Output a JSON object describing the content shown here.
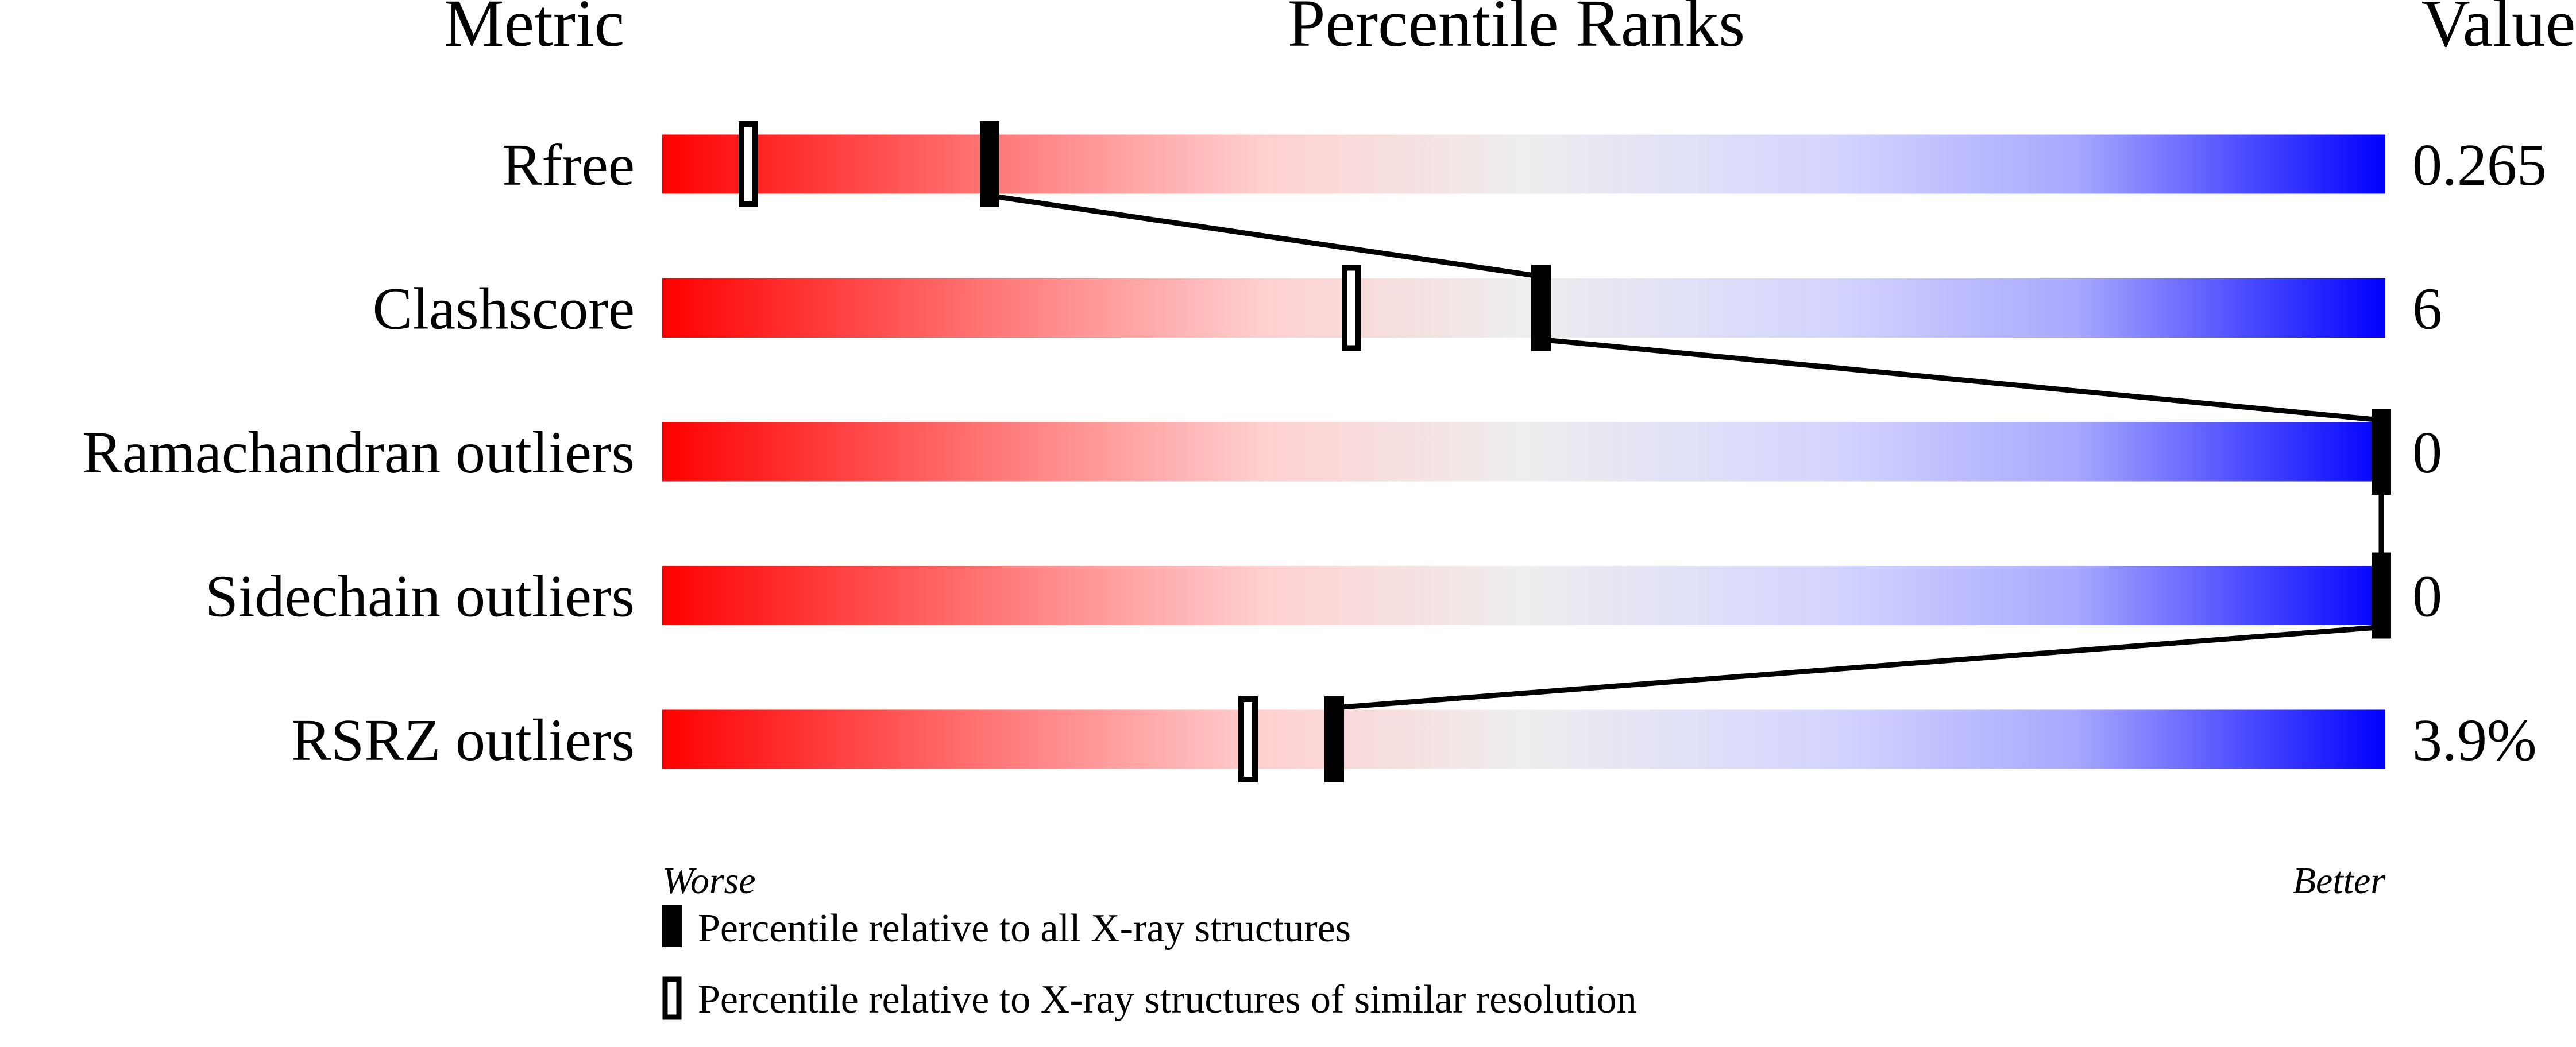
{
  "chart_data": {
    "type": "table",
    "headers": {
      "metric": "Metric",
      "ranks": "Percentile Ranks",
      "value": "Value"
    },
    "axis": {
      "worse": "Worse",
      "better": "Better",
      "range": [
        0,
        100
      ]
    },
    "rows": [
      {
        "metric": "Rfree",
        "value": "0.265",
        "percentile_all": 19,
        "percentile_similar": 5
      },
      {
        "metric": "Clashscore",
        "value": "6",
        "percentile_all": 51,
        "percentile_similar": 40
      },
      {
        "metric": "Ramachandran outliers",
        "value": "0",
        "percentile_all": 100,
        "percentile_similar": 100
      },
      {
        "metric": "Sidechain outliers",
        "value": "0",
        "percentile_all": 100,
        "percentile_similar": 100
      },
      {
        "metric": "RSRZ outliers",
        "value": "3.9%",
        "percentile_all": 39,
        "percentile_similar": 34
      }
    ],
    "legend": {
      "filled": "Percentile relative to all X-ray structures",
      "open": "Percentile relative to X-ray structures of similar resolution"
    },
    "colors": {
      "worse": "#ff0000",
      "middle": "#eeeeee",
      "better": "#0000ff",
      "marker": "#000000"
    }
  }
}
